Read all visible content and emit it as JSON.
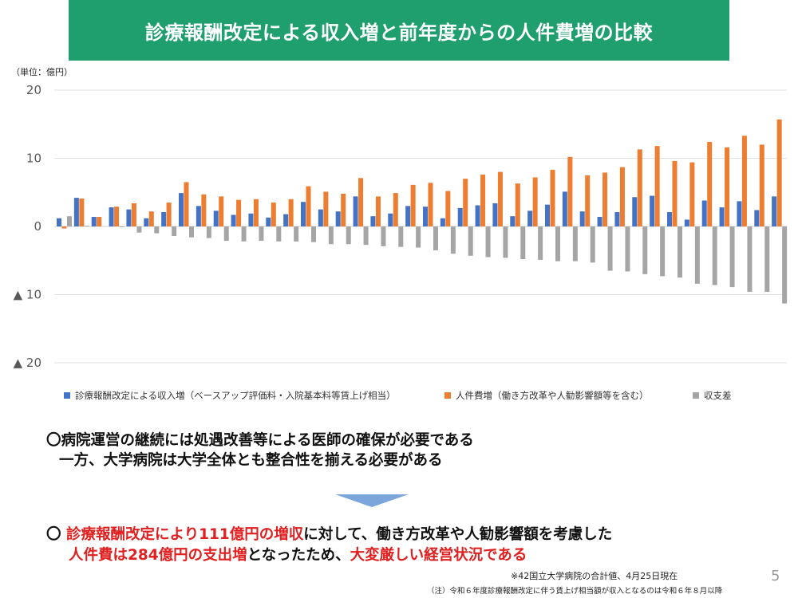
{
  "title": "診療報酬改定による収入増と前年度からの人件費増の比較",
  "unit_label": "（単位：億円）",
  "colors": {
    "blue": "#4472c4",
    "orange": "#ed7d31",
    "gray": "#a5a5a5",
    "banner": "#1f9e6e",
    "accent_red": "#e02020"
  },
  "chart_data": {
    "type": "bar",
    "ylim": [
      -20,
      20
    ],
    "yticks": [
      20,
      10,
      0,
      -10,
      -20
    ],
    "ytick_labels": [
      "20",
      "10",
      "0",
      "▲ 10",
      "▲ 20"
    ],
    "grid": true,
    "legend_position": "bottom",
    "series": [
      {
        "name": "診療報酬改定による収入増（ベースアップ評価料・入院基本料等賃上げ相当）",
        "color": "#4472c4",
        "values": [
          1.2,
          4.2,
          1.4,
          2.8,
          2.5,
          1.2,
          2.1,
          4.9,
          3.0,
          2.3,
          1.7,
          1.9,
          1.3,
          1.8,
          3.6,
          2.5,
          2.2,
          4.4,
          1.5,
          1.9,
          3.0,
          2.9,
          1.2,
          2.7,
          3.1,
          3.4,
          1.5,
          2.3,
          3.2,
          5.1,
          2.2,
          1.4,
          2.1,
          4.3,
          4.5,
          2.1,
          1.0,
          3.8,
          2.8,
          3.7,
          2.4,
          4.4
        ]
      },
      {
        "name": "人件費増（働き方改革や人勧影響額等を含む）",
        "color": "#ed7d31",
        "values": [
          -0.3,
          4.1,
          1.4,
          2.9,
          3.4,
          2.2,
          3.5,
          6.5,
          4.7,
          4.4,
          3.9,
          4.0,
          3.5,
          4.0,
          5.9,
          5.1,
          4.8,
          7.1,
          4.4,
          4.9,
          6.1,
          6.4,
          5.2,
          7.0,
          7.6,
          8.0,
          6.3,
          7.2,
          8.3,
          10.2,
          7.5,
          7.9,
          8.7,
          11.3,
          11.8,
          9.6,
          9.4,
          12.4,
          11.6,
          13.3,
          12.0,
          15.7
        ]
      },
      {
        "name": "収支差",
        "color": "#a5a5a5",
        "values": [
          1.5,
          0.1,
          0.0,
          -0.1,
          -0.9,
          -1.0,
          -1.4,
          -1.6,
          -1.7,
          -2.1,
          -2.2,
          -2.1,
          -2.2,
          -2.2,
          -2.3,
          -2.6,
          -2.6,
          -2.7,
          -2.9,
          -3.0,
          -3.1,
          -3.5,
          -4.0,
          -4.3,
          -4.5,
          -4.6,
          -4.8,
          -4.9,
          -5.1,
          -5.1,
          -5.3,
          -6.5,
          -6.6,
          -7.0,
          -7.3,
          -7.5,
          -8.4,
          -8.6,
          -8.9,
          -9.6,
          -9.6,
          -11.3
        ]
      }
    ]
  },
  "legend": [
    {
      "label": "診療報酬改定による収入増（ベースアップ評価料・入院基本料等賃上げ相当）"
    },
    {
      "label": "人件費増（働き方改革や人勧影響額等を含む）"
    },
    {
      "label": "収支差"
    }
  ],
  "note1": {
    "line1": "〇病院運営の継続には処遇改善等による医師の確保が必要である",
    "line2": "一方、大学病院は大学全体とも整合性を揃える必要がある"
  },
  "note2": {
    "bullet": "〇",
    "p1_red": "診療報酬改定により111億円の増収",
    "p2": "に対して、働き方改革や人勧影響額を考慮した",
    "p3_red": "人件費は284億円の支出増",
    "p4": "となったため、",
    "p5_red": "大変厳しい経営状況である"
  },
  "footnote1": "※42国立大学病院の合計値、4月25日現在",
  "footnote2": "（注）令和６年度診療報酬改定に伴う賃上げ相当額が収入となるのは令和６年８月以降",
  "page_number": "5"
}
